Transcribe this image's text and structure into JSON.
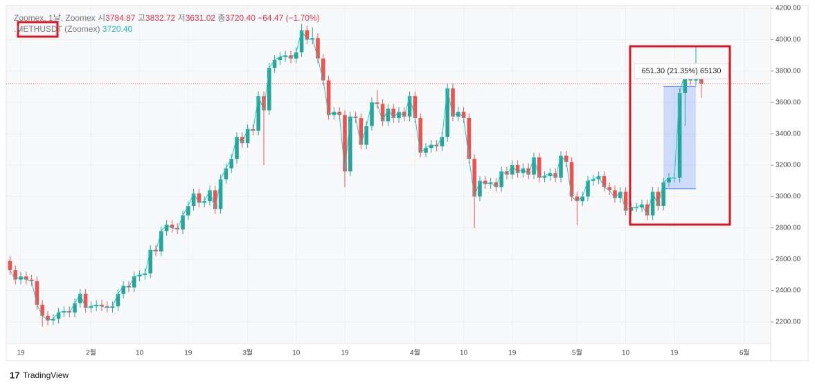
{
  "legend": {
    "source": "Zoomex, 1날, Zoomex",
    "ohlc": [
      {
        "label": "시",
        "value": "3784.87"
      },
      {
        "label": "고",
        "value": "3832.72"
      },
      {
        "label": "저",
        "value": "3631.02"
      },
      {
        "label": "종",
        "value": "3720.40"
      }
    ],
    "change": "−64.47 (−1.70%)",
    "symbol": ".METHUSDT (Zoomex)",
    "symbol_value": "3720.40"
  },
  "chart_data": {
    "type": "candlestick",
    "up_color": "#26a69a",
    "down_color": "#ef5350",
    "line_color": "#22c7c0",
    "grid": true,
    "categories": [
      null,
      null,
      "19",
      null,
      null,
      null,
      null,
      null,
      null,
      null,
      null,
      null,
      null,
      null,
      null,
      "2월",
      null,
      null,
      null,
      null,
      null,
      null,
      null,
      null,
      "10",
      null,
      null,
      null,
      null,
      null,
      null,
      null,
      null,
      "19",
      null,
      null,
      null,
      null,
      null,
      null,
      null,
      null,
      null,
      null,
      "3월",
      null,
      null,
      null,
      null,
      null,
      null,
      null,
      null,
      "10",
      null,
      null,
      null,
      null,
      null,
      null,
      null,
      null,
      "19",
      null,
      null,
      null,
      null,
      null,
      null,
      null,
      null,
      null,
      null,
      null,
      null,
      "4월",
      null,
      null,
      null,
      null,
      null,
      null,
      null,
      null,
      "10",
      null,
      null,
      null,
      null,
      null,
      null,
      null,
      null,
      "19",
      null,
      null,
      null,
      null,
      null,
      null,
      null,
      null,
      null,
      null,
      null,
      "5월",
      null,
      null,
      null,
      null,
      null,
      null,
      null,
      null,
      "10",
      null,
      null,
      null,
      null,
      null,
      null,
      null,
      null,
      "19",
      null,
      null,
      null,
      null,
      null,
      null,
      null,
      null,
      null,
      null,
      null,
      null,
      "6월",
      null,
      null,
      null,
      null
    ],
    "open": [
      2590,
      2530,
      2470,
      2490,
      2470,
      2460,
      2310,
      2240,
      2210,
      2220,
      2260,
      2270,
      2260,
      2320,
      2380,
      2290,
      2300,
      2310,
      2300,
      2290,
      2300,
      2380,
      2430,
      2420,
      2490,
      2500,
      2510,
      2660,
      2650,
      2780,
      2820,
      2800,
      2790,
      2880,
      2940,
      3020,
      2960,
      2970,
      3040,
      2920,
      3110,
      3180,
      3240,
      3380,
      3340,
      3430,
      3420,
      3640,
      3550,
      3820,
      3870,
      3890,
      3900,
      3880,
      3920,
      4060,
      4000,
      4010,
      3880,
      3740,
      3520,
      3540,
      3520,
      3160,
      3510,
      3500,
      3330,
      3450,
      3600,
      3590,
      3480,
      3560,
      3500,
      3540,
      3510,
      3640,
      3500,
      3280,
      3310,
      3330,
      3320,
      3380,
      3690,
      3510,
      3540,
      3500,
      3240,
      3000,
      3100,
      3080,
      3090,
      3060,
      3160,
      3140,
      3200,
      3150,
      3180,
      3140,
      3250,
      3120,
      3130,
      3150,
      3120,
      3260,
      3220,
      3000,
      2970,
      3000,
      3100,
      3110,
      3130,
      3060,
      3040,
      2990,
      3030,
      2910,
      2930,
      2930,
      2950,
      2880,
      3030,
      2940,
      3090,
      3120,
      3120,
      3660,
      3790,
      3740,
      3784.87,
      null,
      null,
      null,
      null,
      null,
      null,
      null,
      null,
      null,
      null,
      null,
      null
    ],
    "high": [
      2620,
      2560,
      2520,
      2520,
      2500,
      2490,
      2340,
      2270,
      2250,
      2290,
      2300,
      2300,
      2350,
      2410,
      2410,
      2330,
      2340,
      2340,
      2330,
      2330,
      2410,
      2460,
      2460,
      2520,
      2530,
      2540,
      2690,
      2690,
      2810,
      2850,
      2850,
      2830,
      2910,
      2970,
      3050,
      3050,
      3000,
      3070,
      3070,
      3140,
      3210,
      3270,
      3410,
      3410,
      3460,
      3460,
      3670,
      3670,
      3850,
      3900,
      3920,
      3930,
      3930,
      3950,
      4100,
      4090,
      4080,
      4040,
      3910,
      3770,
      3570,
      3570,
      3550,
      3540,
      3540,
      3530,
      3480,
      3630,
      3680,
      3620,
      3590,
      3590,
      3570,
      3570,
      3670,
      3670,
      3530,
      3340,
      3360,
      3360,
      3410,
      3720,
      3720,
      3570,
      3570,
      3530,
      3270,
      3130,
      3130,
      3120,
      3120,
      3190,
      3190,
      3230,
      3230,
      3210,
      3210,
      3280,
      3280,
      3160,
      3180,
      3180,
      3290,
      3290,
      3250,
      3030,
      3030,
      3130,
      3140,
      3160,
      3160,
      3090,
      3070,
      3060,
      3060,
      2960,
      2960,
      2980,
      2980,
      3060,
      3060,
      3120,
      3150,
      3150,
      3690,
      3850,
      3820,
      3950,
      3832.72,
      null,
      null,
      null,
      null,
      null,
      null,
      null,
      null,
      null,
      null,
      null,
      null
    ],
    "low": [
      2500,
      2440,
      2440,
      2440,
      2430,
      2280,
      2170,
      2180,
      2180,
      2190,
      2230,
      2230,
      2230,
      2290,
      2260,
      2260,
      2270,
      2270,
      2260,
      2260,
      2270,
      2350,
      2390,
      2390,
      2460,
      2470,
      2480,
      2620,
      2620,
      2750,
      2770,
      2760,
      2760,
      2850,
      2910,
      2930,
      2930,
      2940,
      2890,
      2890,
      3080,
      3150,
      3210,
      3310,
      3310,
      3390,
      3390,
      3200,
      3520,
      3790,
      3840,
      3860,
      3850,
      3850,
      3890,
      3970,
      3970,
      3850,
      3710,
      3490,
      3490,
      3490,
      3060,
      3130,
      3470,
      3300,
      3300,
      3420,
      3560,
      3450,
      3450,
      3470,
      3470,
      3480,
      3480,
      3470,
      3250,
      3250,
      3280,
      3290,
      3290,
      3350,
      3480,
      3480,
      3470,
      3210,
      2800,
      2970,
      3050,
      3050,
      3030,
      3030,
      3110,
      3110,
      3120,
      3120,
      3110,
      3110,
      3090,
      3090,
      3100,
      3090,
      3090,
      3190,
      2970,
      2820,
      2940,
      2970,
      3070,
      3080,
      3030,
      3010,
      2960,
      2960,
      2880,
      2880,
      2900,
      2900,
      2850,
      2850,
      2910,
      2910,
      3060,
      3090,
      3090,
      3450,
      3710,
      3710,
      3631.02,
      null,
      null,
      null,
      null,
      null,
      null,
      null,
      null,
      null,
      null,
      null,
      null
    ],
    "close": [
      2530,
      2470,
      2490,
      2470,
      2460,
      2310,
      2240,
      2210,
      2220,
      2260,
      2270,
      2260,
      2320,
      2380,
      2290,
      2300,
      2310,
      2300,
      2290,
      2300,
      2380,
      2430,
      2420,
      2490,
      2500,
      2510,
      2660,
      2650,
      2780,
      2820,
      2800,
      2790,
      2880,
      2940,
      3020,
      2960,
      2970,
      3040,
      2920,
      3110,
      3180,
      3240,
      3380,
      3340,
      3430,
      3420,
      3640,
      3550,
      3820,
      3870,
      3890,
      3900,
      3880,
      3920,
      4060,
      4000,
      4010,
      3880,
      3740,
      3520,
      3540,
      3520,
      3160,
      3510,
      3500,
      3330,
      3450,
      3600,
      3590,
      3480,
      3560,
      3500,
      3540,
      3510,
      3640,
      3500,
      3280,
      3310,
      3330,
      3320,
      3380,
      3690,
      3510,
      3540,
      3500,
      3240,
      3000,
      3100,
      3080,
      3090,
      3060,
      3160,
      3140,
      3200,
      3150,
      3180,
      3140,
      3250,
      3120,
      3130,
      3150,
      3120,
      3260,
      3220,
      3000,
      2970,
      3000,
      3100,
      3110,
      3130,
      3060,
      3040,
      2990,
      3030,
      2910,
      2930,
      2930,
      2950,
      2880,
      3030,
      2940,
      3090,
      3120,
      3120,
      3660,
      3790,
      3740,
      3780,
      3720.4,
      null,
      null,
      null,
      null,
      null,
      null,
      null,
      null,
      null,
      null,
      null,
      null
    ],
    "ylim": [
      2063,
      4218
    ],
    "yticks": [
      {
        "value": 2200,
        "label": "2200.00"
      },
      {
        "value": 2400,
        "label": "2400.00"
      },
      {
        "value": 2600,
        "label": "2600.00"
      },
      {
        "value": 2800,
        "label": "2800.00"
      },
      {
        "value": 3000,
        "label": "3000.00"
      },
      {
        "value": 3200,
        "label": "3200.00"
      },
      {
        "value": 3400,
        "label": "3400.00"
      },
      {
        "value": 3600,
        "label": "3600.00"
      },
      {
        "value": 3800,
        "label": "3800.00"
      },
      {
        "value": 4000,
        "label": "4000.00"
      },
      {
        "value": 4200,
        "label": "4200.00"
      }
    ],
    "price_line": 3720.4,
    "price_line_color": "#ef5350",
    "measure": {
      "from": 3050,
      "to": 3701.3,
      "label": "651.30 (21.35%) 65130",
      "color": "#2962ff"
    },
    "brand": "TradingView"
  }
}
